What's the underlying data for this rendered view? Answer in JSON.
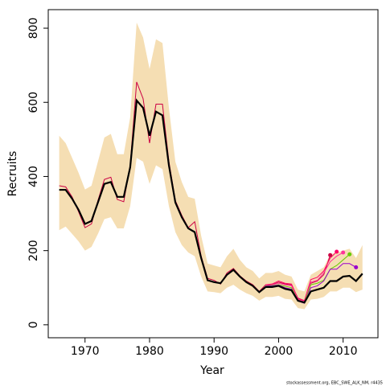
{
  "chart_data": {
    "type": "line",
    "x_label": "Year",
    "y_label": "Recruits",
    "source": "stockassessment.org, EBC_SWE_ALK_NM, r4435",
    "xlim": [
      1964.3,
      2015.4
    ],
    "ylim": [
      -35,
      850
    ],
    "xticks": [
      1970,
      1980,
      1990,
      2000,
      2010
    ],
    "yticks": [
      0,
      200,
      400,
      600,
      800
    ],
    "x": [
      1966,
      1967,
      1968,
      1969,
      1970,
      1971,
      1972,
      1973,
      1974,
      1975,
      1976,
      1977,
      1978,
      1979,
      1980,
      1981,
      1982,
      1983,
      1984,
      1985,
      1986,
      1987,
      1988,
      1989,
      1990,
      1991,
      1992,
      1993,
      1994,
      1995,
      1996,
      1997,
      1998,
      1999,
      2000,
      2001,
      2002,
      2003,
      2004,
      2005,
      2006,
      2007,
      2008,
      2009,
      2010,
      2011,
      2012,
      2013
    ],
    "values": [
      364,
      364,
      340,
      310,
      272,
      280,
      330,
      380,
      385,
      345,
      345,
      425,
      605,
      585,
      510,
      575,
      565,
      430,
      330,
      290,
      260,
      250,
      180,
      120,
      115,
      112,
      135,
      148,
      130,
      115,
      105,
      88,
      102,
      102,
      105,
      97,
      93,
      65,
      60,
      90,
      95,
      100,
      118,
      118,
      130,
      132,
      118,
      138
    ],
    "color": "#000000",
    "band_low": [
      255,
      265,
      245,
      225,
      200,
      210,
      245,
      285,
      290,
      260,
      260,
      320,
      450,
      440,
      380,
      430,
      420,
      320,
      250,
      215,
      195,
      185,
      130,
      90,
      88,
      85,
      100,
      108,
      95,
      85,
      78,
      65,
      75,
      75,
      78,
      70,
      68,
      45,
      42,
      68,
      70,
      75,
      90,
      90,
      100,
      100,
      88,
      95
    ],
    "band_high": [
      510,
      490,
      450,
      410,
      365,
      375,
      440,
      505,
      515,
      460,
      460,
      560,
      815,
      775,
      690,
      770,
      760,
      585,
      440,
      385,
      345,
      340,
      240,
      165,
      160,
      155,
      185,
      205,
      175,
      155,
      145,
      125,
      140,
      140,
      145,
      135,
      130,
      95,
      90,
      135,
      145,
      155,
      190,
      195,
      200,
      205,
      180,
      215
    ],
    "band_color": "#f5deb3",
    "retro": [
      {
        "color": "#cc0044",
        "x": [
          1966,
          1967,
          1968,
          1969,
          1970,
          1971,
          1972,
          1973,
          1974,
          1975,
          1976,
          1977,
          1978,
          1979,
          1980,
          1981,
          1982,
          1983,
          1984,
          1985,
          1986,
          1987,
          1988,
          1989,
          1990,
          1991,
          1992,
          1993,
          1994,
          1995,
          1996,
          1997,
          1998,
          1999,
          2000,
          2001,
          2002,
          2003,
          2004,
          2005,
          2006,
          2007,
          2008
        ],
        "values": [
          375,
          372,
          345,
          305,
          262,
          272,
          335,
          392,
          398,
          338,
          332,
          430,
          655,
          610,
          490,
          595,
          595,
          440,
          335,
          295,
          262,
          278,
          185,
          125,
          120,
          110,
          140,
          152,
          132,
          118,
          108,
          90,
          108,
          108,
          115,
          110,
          108,
          72,
          65,
          112,
          118,
          135,
          188
        ]
      },
      {
        "color": "#ff0066",
        "x": [
          1998,
          1999,
          2000,
          2001,
          2002,
          2003,
          2004,
          2005,
          2006,
          2007,
          2008,
          2009
        ],
        "values": [
          108,
          110,
          118,
          112,
          110,
          70,
          65,
          122,
          128,
          145,
          180,
          197
        ]
      },
      {
        "color": "#ff3399",
        "x": [
          1998,
          1999,
          2000,
          2001,
          2002,
          2003,
          2004,
          2005,
          2006,
          2007,
          2008,
          2009,
          2010
        ],
        "values": [
          105,
          108,
          112,
          108,
          105,
          68,
          62,
          115,
          120,
          140,
          170,
          185,
          195
        ]
      },
      {
        "color": "#66cc00",
        "x": [
          1998,
          1999,
          2000,
          2001,
          2002,
          2003,
          2004,
          2005,
          2006,
          2007,
          2008,
          2009,
          2010,
          2011
        ],
        "values": [
          104,
          106,
          108,
          104,
          100,
          66,
          60,
          108,
          112,
          120,
          150,
          160,
          175,
          190
        ]
      },
      {
        "color": "#9900cc",
        "x": [
          1998,
          1999,
          2000,
          2001,
          2002,
          2003,
          2004,
          2005,
          2006,
          2007,
          2008,
          2009,
          2010,
          2011,
          2012
        ],
        "values": [
          104,
          105,
          107,
          100,
          96,
          64,
          58,
          100,
          105,
          118,
          150,
          150,
          165,
          165,
          155
        ]
      }
    ]
  }
}
